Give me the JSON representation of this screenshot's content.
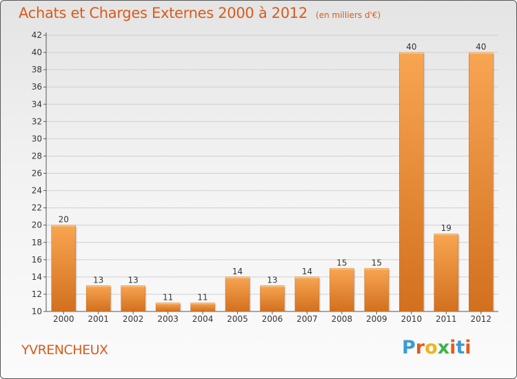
{
  "title": "Achats et Charges Externes 2000 à 2012",
  "unit_note": "(en milliers d'€)",
  "commune": "YVRENCHEUX",
  "logo": {
    "text": "Proxiti",
    "colors": [
      "#3a9ad9",
      "#e85a1a",
      "#f2b31b",
      "#3ab54a",
      "#e85a1a",
      "#3a9ad9",
      "#e85a1a"
    ]
  },
  "colors": {
    "accent": "#d85b1c",
    "bar_top": "#f8a552",
    "bar_bottom": "#d2701e",
    "grid": "#cfcfcf"
  },
  "chart_data": {
    "type": "bar",
    "title": "Achats et Charges Externes 2000 à 2012",
    "subtitle": "(en milliers d'€)",
    "categories": [
      "2000",
      "2001",
      "2002",
      "2003",
      "2004",
      "2005",
      "2006",
      "2007",
      "2008",
      "2009",
      "2010",
      "2011",
      "2012"
    ],
    "values": [
      20,
      13,
      13,
      11,
      11,
      14,
      13,
      14,
      15,
      15,
      40,
      19,
      40
    ],
    "data_labels": [
      "20",
      "13",
      "13",
      "11",
      "11",
      "14",
      "13",
      "14",
      "15",
      "15",
      "40",
      "19",
      "40"
    ],
    "xlabel": "",
    "ylabel": "",
    "ylim": [
      10,
      42
    ],
    "yticks": [
      "10",
      "12",
      "14",
      "16",
      "18",
      "20",
      "22",
      "24",
      "26",
      "28",
      "30",
      "32",
      "34",
      "36",
      "38",
      "40",
      "42"
    ],
    "grid": true,
    "legend": "none"
  }
}
